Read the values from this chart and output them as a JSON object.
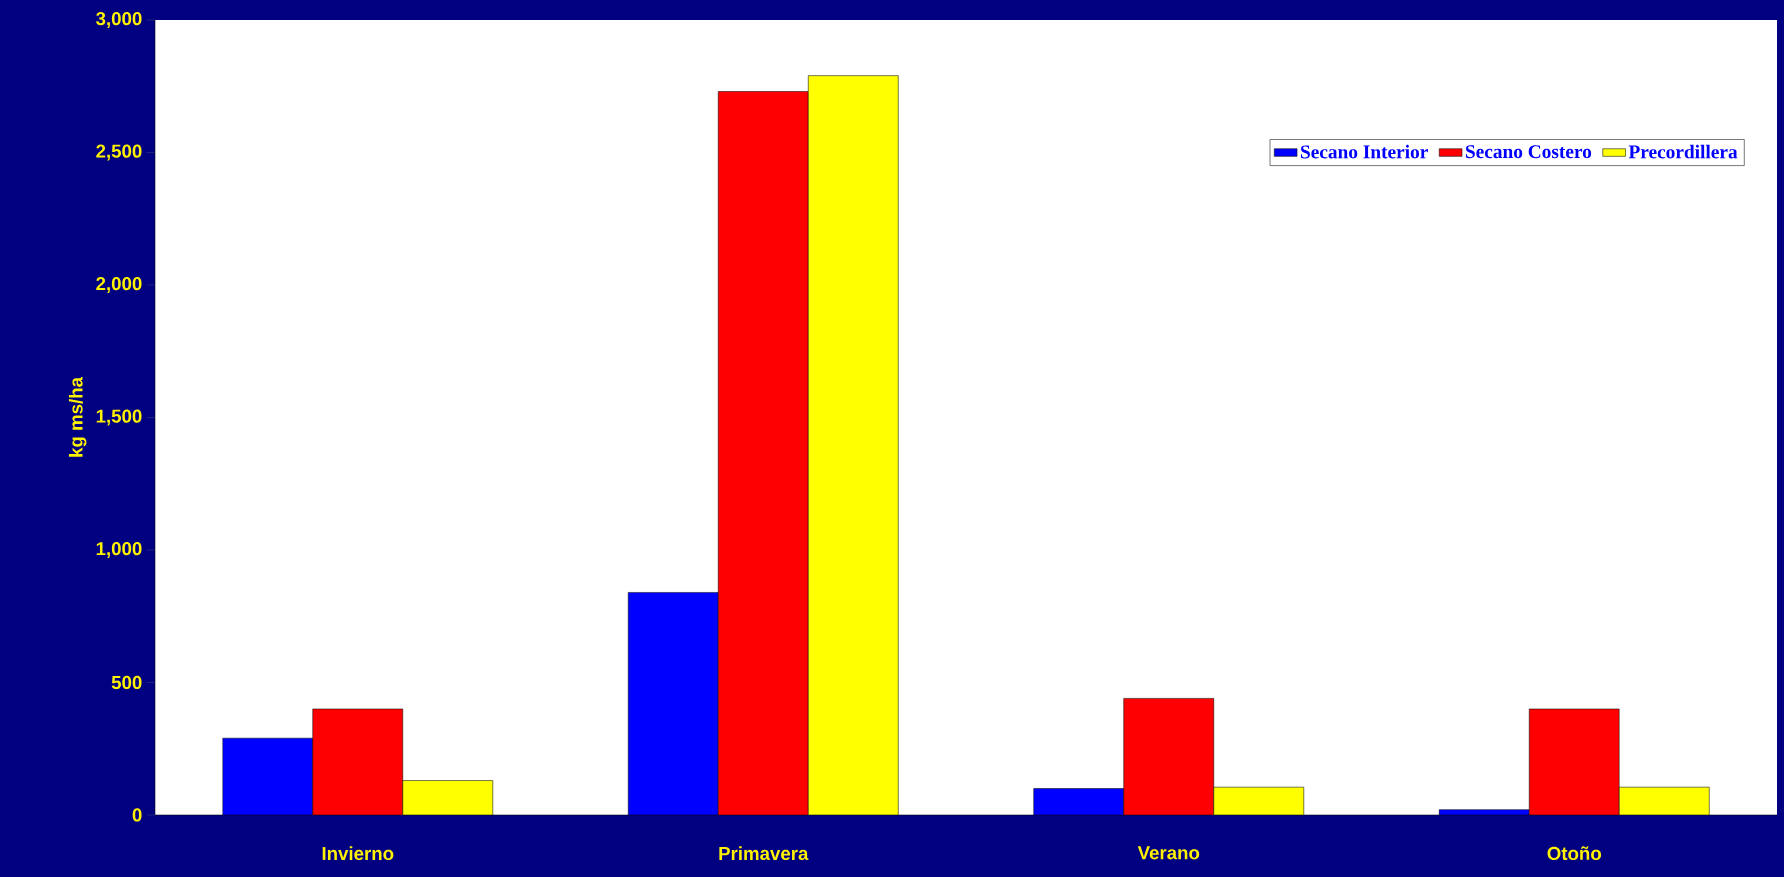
{
  "chart_data": {
    "type": "bar",
    "ylabel": "kg ms/ha",
    "categories": [
      "Invierno",
      "Primavera",
      "Verano",
      "Otoño"
    ],
    "series": [
      {
        "name": "Secano Interior",
        "color": "#0000ff",
        "values": [
          290,
          840,
          100,
          20
        ]
      },
      {
        "name": "Secano Costero",
        "color": "#ff0000",
        "values": [
          400,
          2730,
          440,
          400
        ]
      },
      {
        "name": "Precordillera",
        "color": "#ffff00",
        "values": [
          130,
          2790,
          105,
          105
        ]
      }
    ],
    "ylim": [
      0,
      3000
    ],
    "yticks": [
      0,
      500,
      {
        "value": 1000,
        "label": "1,000"
      },
      {
        "value": 1500,
        "label": "1,500"
      },
      {
        "value": 2000,
        "label": "2,000"
      },
      {
        "value": 2500,
        "label": "2,500"
      },
      {
        "value": 3000,
        "label": "3,000"
      }
    ],
    "grid": false,
    "legend": "top right"
  }
}
